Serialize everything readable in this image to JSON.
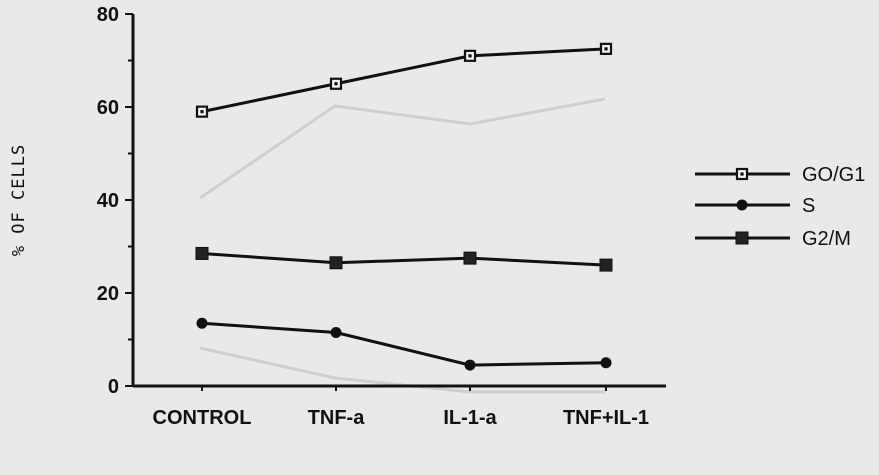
{
  "chart_data": {
    "type": "line",
    "categories": [
      "CONTROL",
      "TNF-a",
      "IL-1-a",
      "TNF+IL-1"
    ],
    "ylabel": "% OF CELLS",
    "ylim": [
      0,
      80
    ],
    "yticks": [
      0,
      20,
      40,
      60,
      80
    ],
    "grid": false,
    "legend_position": "right",
    "series": [
      {
        "name": "GO/G1",
        "marker": "open-square",
        "values": [
          59,
          65,
          71,
          72.5
        ]
      },
      {
        "name": "S",
        "marker": "filled-circle",
        "values": [
          13.5,
          11.5,
          4.5,
          5
        ]
      },
      {
        "name": "G2/M",
        "marker": "filled-square",
        "values": [
          28.5,
          26.5,
          27.5,
          26
        ]
      }
    ]
  }
}
